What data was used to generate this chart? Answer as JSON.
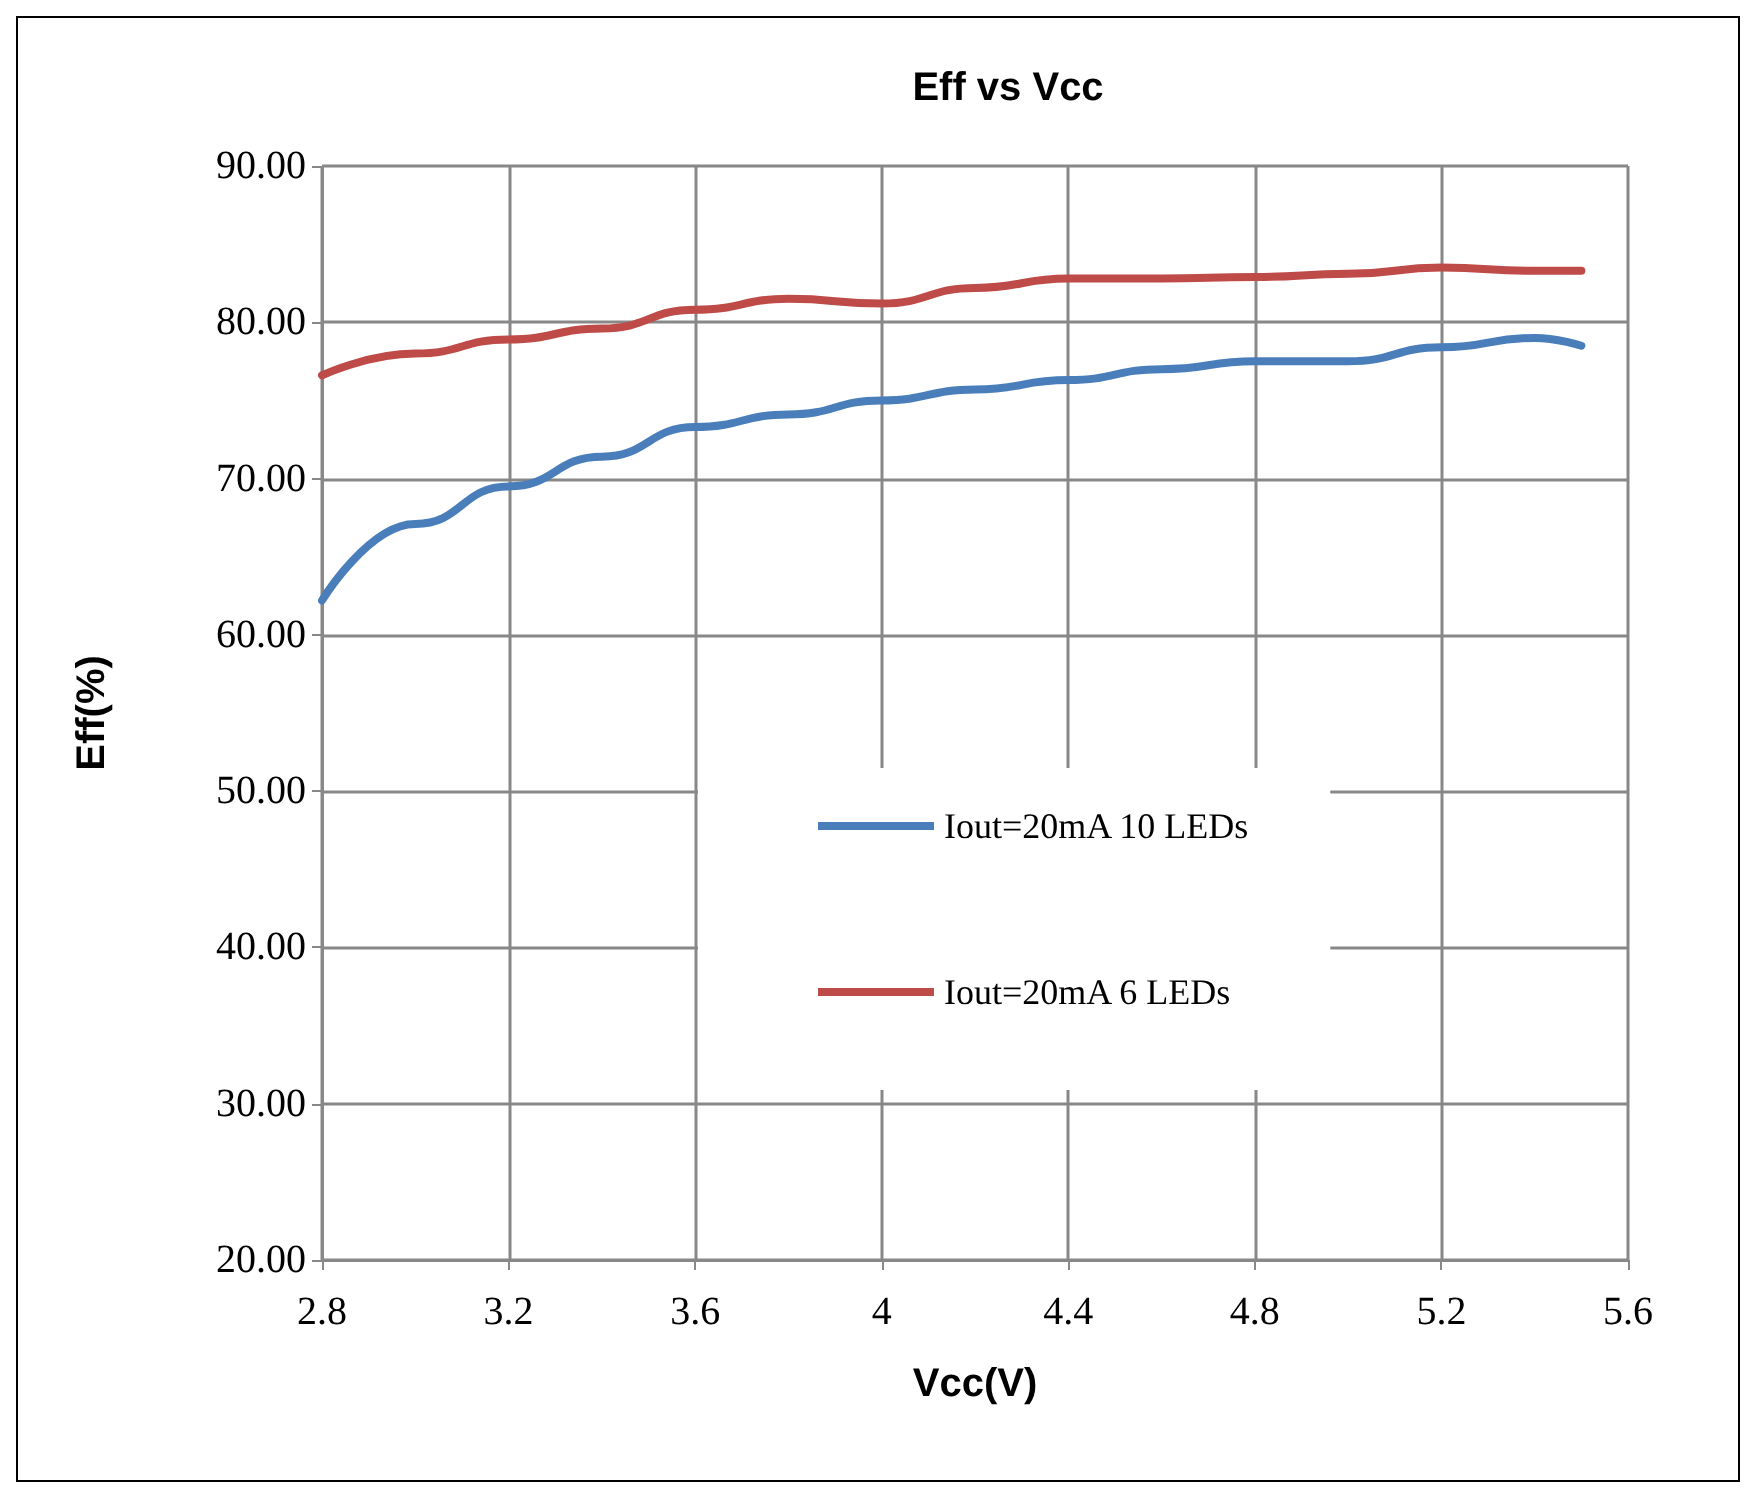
{
  "chart_data": {
    "type": "line",
    "title": "Eff vs Vcc",
    "xlabel": "Vcc(V)",
    "ylabel": "Eff(%)",
    "x": [
      2.8,
      3.0,
      3.2,
      3.4,
      3.6,
      3.8,
      4.0,
      4.2,
      4.4,
      4.6,
      4.8,
      5.0,
      5.2,
      5.4,
      5.5
    ],
    "series": [
      {
        "name": "Iout=20mA 10 LEDs",
        "color": "#4a7ebb",
        "values": [
          62.2,
          67.1,
          69.5,
          71.4,
          73.3,
          74.1,
          75.0,
          75.7,
          76.3,
          77.0,
          77.5,
          77.5,
          78.4,
          79.0,
          78.5
        ]
      },
      {
        "name": "Iout=20mA 6 LEDs",
        "color": "#be4b48",
        "values": [
          76.6,
          78.0,
          78.9,
          79.6,
          80.8,
          81.5,
          81.2,
          82.2,
          82.8,
          82.8,
          82.9,
          83.1,
          83.5,
          83.3,
          83.3
        ]
      }
    ],
    "xlim": [
      2.8,
      5.6
    ],
    "xticks": [
      2.8,
      3.2,
      3.6,
      4,
      4.4,
      4.8,
      5.2,
      5.6
    ],
    "ylim": [
      20,
      90
    ],
    "yticks": [
      {
        "value": 20,
        "label": "20.00"
      },
      {
        "value": 30,
        "label": "30.00"
      },
      {
        "value": 40,
        "label": "40.00"
      },
      {
        "value": 50,
        "label": "50.00"
      },
      {
        "value": 60,
        "label": "60.00"
      },
      {
        "value": 70,
        "label": "70.00"
      },
      {
        "value": 80,
        "label": "80.00"
      },
      {
        "value": 90,
        "label": "90.00"
      }
    ],
    "grid": true,
    "legend": "center",
    "marker": "none",
    "line_style": "solid"
  }
}
